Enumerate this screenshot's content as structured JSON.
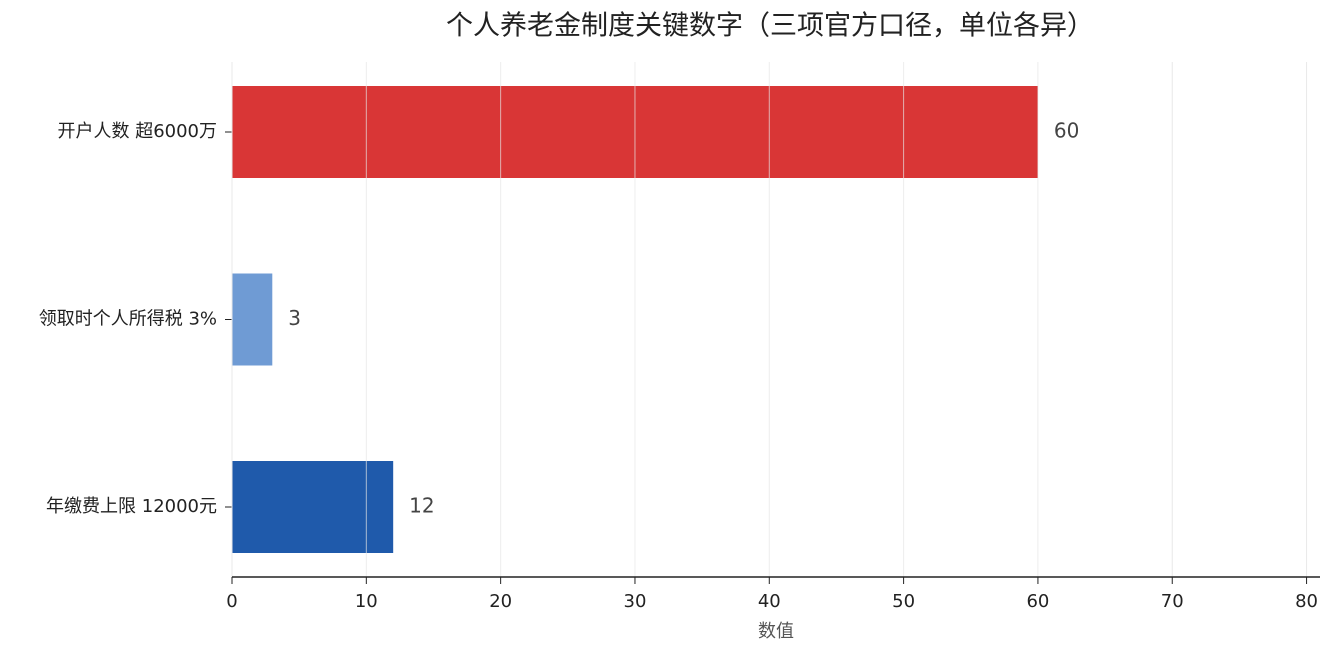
{
  "chart_data": {
    "type": "barh",
    "title": "个人养老金制度关键数字（三项官方口径，单位各异）",
    "categories": [
      "开户人数 超6000万",
      "领取时个人所得税 3%",
      "年缴费上限 12000元"
    ],
    "values": [
      60,
      3,
      12
    ],
    "colors": [
      "#d93636",
      "#6f9bd4",
      "#1f5aab"
    ],
    "xlabel": "数值",
    "xlim": [
      0,
      81
    ],
    "xticks": [
      0,
      10,
      20,
      30,
      40,
      50,
      60,
      70,
      80
    ],
    "grid": true
  }
}
